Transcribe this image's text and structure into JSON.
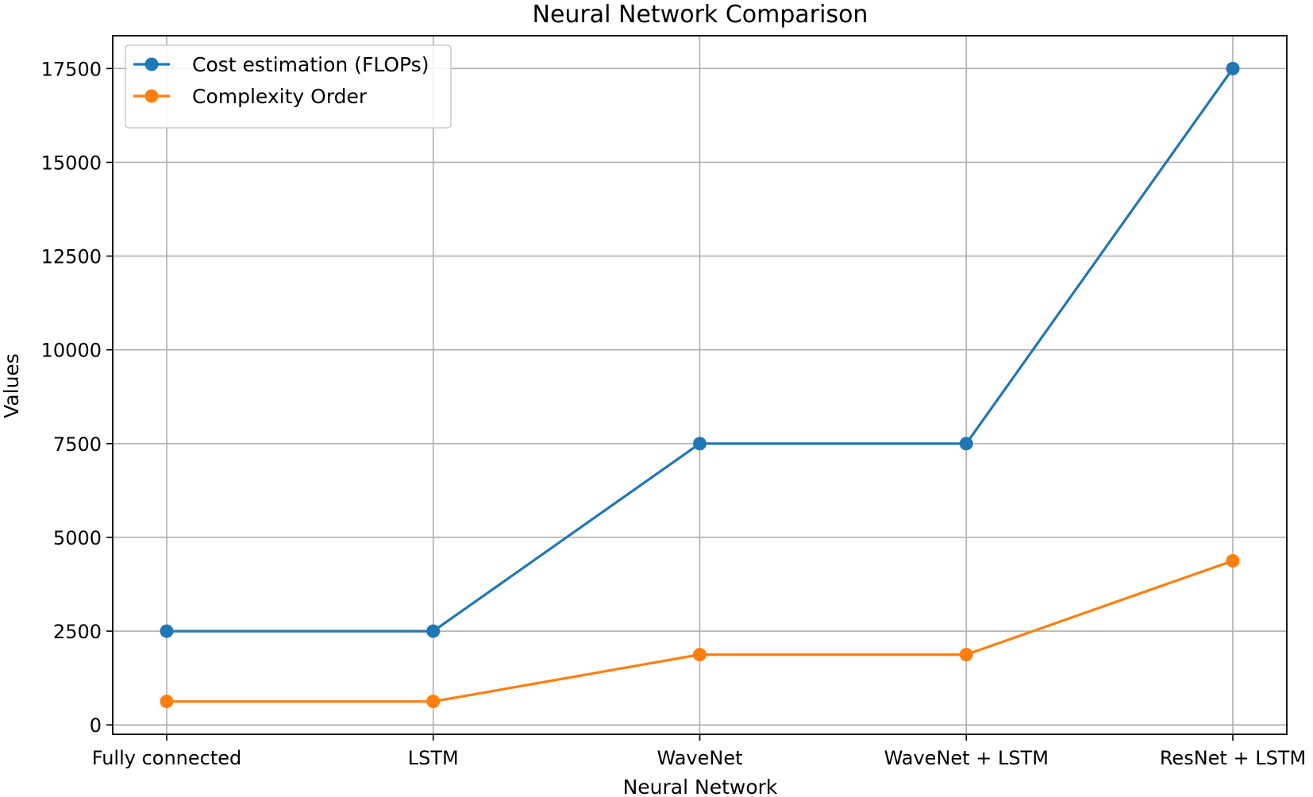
{
  "chart_data": {
    "type": "line",
    "title": "Neural Network Comparison",
    "xlabel": "Neural Network",
    "ylabel": "Values",
    "categories": [
      "Fully connected",
      "LSTM",
      "WaveNet",
      "WaveNet + LSTM",
      "ResNet + LSTM"
    ],
    "series": [
      {
        "name": "Cost estimation (FLOPs)",
        "color": "#1f77b4",
        "values": [
          2500,
          2500,
          7500,
          7500,
          17500
        ]
      },
      {
        "name": "Complexity Order",
        "color": "#ff7f0e",
        "values": [
          625,
          625,
          1875,
          1875,
          4375
        ]
      }
    ],
    "ylim": [
      -250,
      18375
    ],
    "yticks": [
      0,
      2500,
      5000,
      7500,
      10000,
      12500,
      15000,
      17500
    ],
    "ytick_labels": [
      "0",
      "2500",
      "5000",
      "7500",
      "10000",
      "12500",
      "15000",
      "17500"
    ],
    "grid": true,
    "legend_position": "upper left",
    "marker": "circle"
  }
}
